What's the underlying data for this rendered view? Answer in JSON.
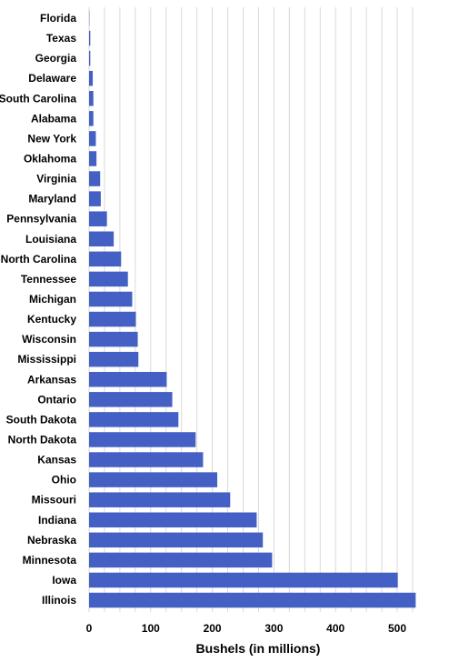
{
  "chart_data": {
    "type": "bar",
    "orientation": "horizontal",
    "categories": [
      "Florida",
      "Texas",
      "Georgia",
      "Delaware",
      "South Carolina",
      "Alabama",
      "New York",
      "Oklahoma",
      "Virginia",
      "Maryland",
      "Pennsylvania",
      "Louisiana",
      "North Carolina",
      "Tennessee",
      "Michigan",
      "Kentucky",
      "Wisconsin",
      "Mississippi",
      "Arkansas",
      "Ontario",
      "South Dakota",
      "North Dakota",
      "Kansas",
      "Ohio",
      "Missouri",
      "Indiana",
      "Nebraska",
      "Minnesota",
      "Iowa",
      "Illinois"
    ],
    "values": [
      0.5,
      2,
      2,
      6,
      7,
      7,
      11,
      12,
      18,
      19,
      29,
      40,
      52,
      63,
      70,
      76,
      79,
      80,
      126,
      135,
      145,
      173,
      185,
      208,
      229,
      272,
      282,
      297,
      501,
      530
    ],
    "xlabel": "Bushels (in millions)",
    "xlim": [
      0,
      530
    ],
    "xticks": [
      0,
      100,
      200,
      300,
      400,
      500
    ],
    "grid": true,
    "bar_color": "#4560c4",
    "gridline_color": "#d9d9d9"
  }
}
